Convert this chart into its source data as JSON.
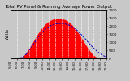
{
  "title": "Total PV Panel & Running Average Power Output",
  "ylabel_left": "Watts",
  "background_color": "#c8c8c8",
  "plot_bg_color": "#c8c8c8",
  "bar_color": "#ff0000",
  "line_color": "#0000cc",
  "ylim": [
    0,
    3000
  ],
  "yticks": [
    0,
    500,
    1000,
    1500,
    2000,
    2500,
    3000
  ],
  "ytick_labels": [
    "0",
    "500",
    "1000",
    "1500",
    "2000",
    "2500",
    "3000"
  ],
  "pv_data": [
    0,
    0,
    0,
    2,
    8,
    20,
    45,
    90,
    160,
    260,
    390,
    540,
    700,
    870,
    1040,
    1210,
    1380,
    1540,
    1690,
    1830,
    1950,
    2060,
    2160,
    2240,
    2310,
    2360,
    2400,
    2430,
    2450,
    2460,
    2460,
    2450,
    2430,
    2400,
    2360,
    2300,
    2230,
    2140,
    2040,
    1930,
    1800,
    1660,
    1510,
    1350,
    1190,
    1030,
    870,
    710,
    560,
    420,
    300,
    200,
    120,
    65,
    25,
    8,
    2,
    0,
    0,
    0
  ],
  "avg_data": [
    0,
    0,
    0,
    1,
    4,
    12,
    28,
    60,
    110,
    185,
    290,
    415,
    555,
    700,
    850,
    1000,
    1145,
    1285,
    1415,
    1540,
    1650,
    1745,
    1830,
    1905,
    1970,
    2020,
    2060,
    2095,
    2120,
    2135,
    2145,
    2145,
    2140,
    2125,
    2105,
    2075,
    2040,
    1995,
    1940,
    1875,
    1800,
    1715,
    1620,
    1520,
    1415,
    1305,
    1190,
    1075,
    960,
    845,
    740,
    640,
    545,
    455,
    370,
    295,
    230,
    170,
    120,
    80
  ],
  "xtick_labels": [
    "5:00",
    "6:00",
    "7:00",
    "8:00",
    "9:00",
    "10:00",
    "11:00",
    "12:00",
    "13:00",
    "14:00",
    "15:00",
    "16:00",
    "17:00",
    "18:00",
    "19:00",
    "20:00"
  ],
  "n_points": 60,
  "n_xticks": 16,
  "title_fontsize": 4.0,
  "tick_fontsize": 3.0,
  "ylabel_fontsize": 3.5,
  "grid_color": "#ffffff",
  "grid_alpha": 1.0,
  "grid_linewidth": 0.4,
  "line_linewidth": 0.7,
  "line_dashes": [
    2.5,
    1.5
  ]
}
